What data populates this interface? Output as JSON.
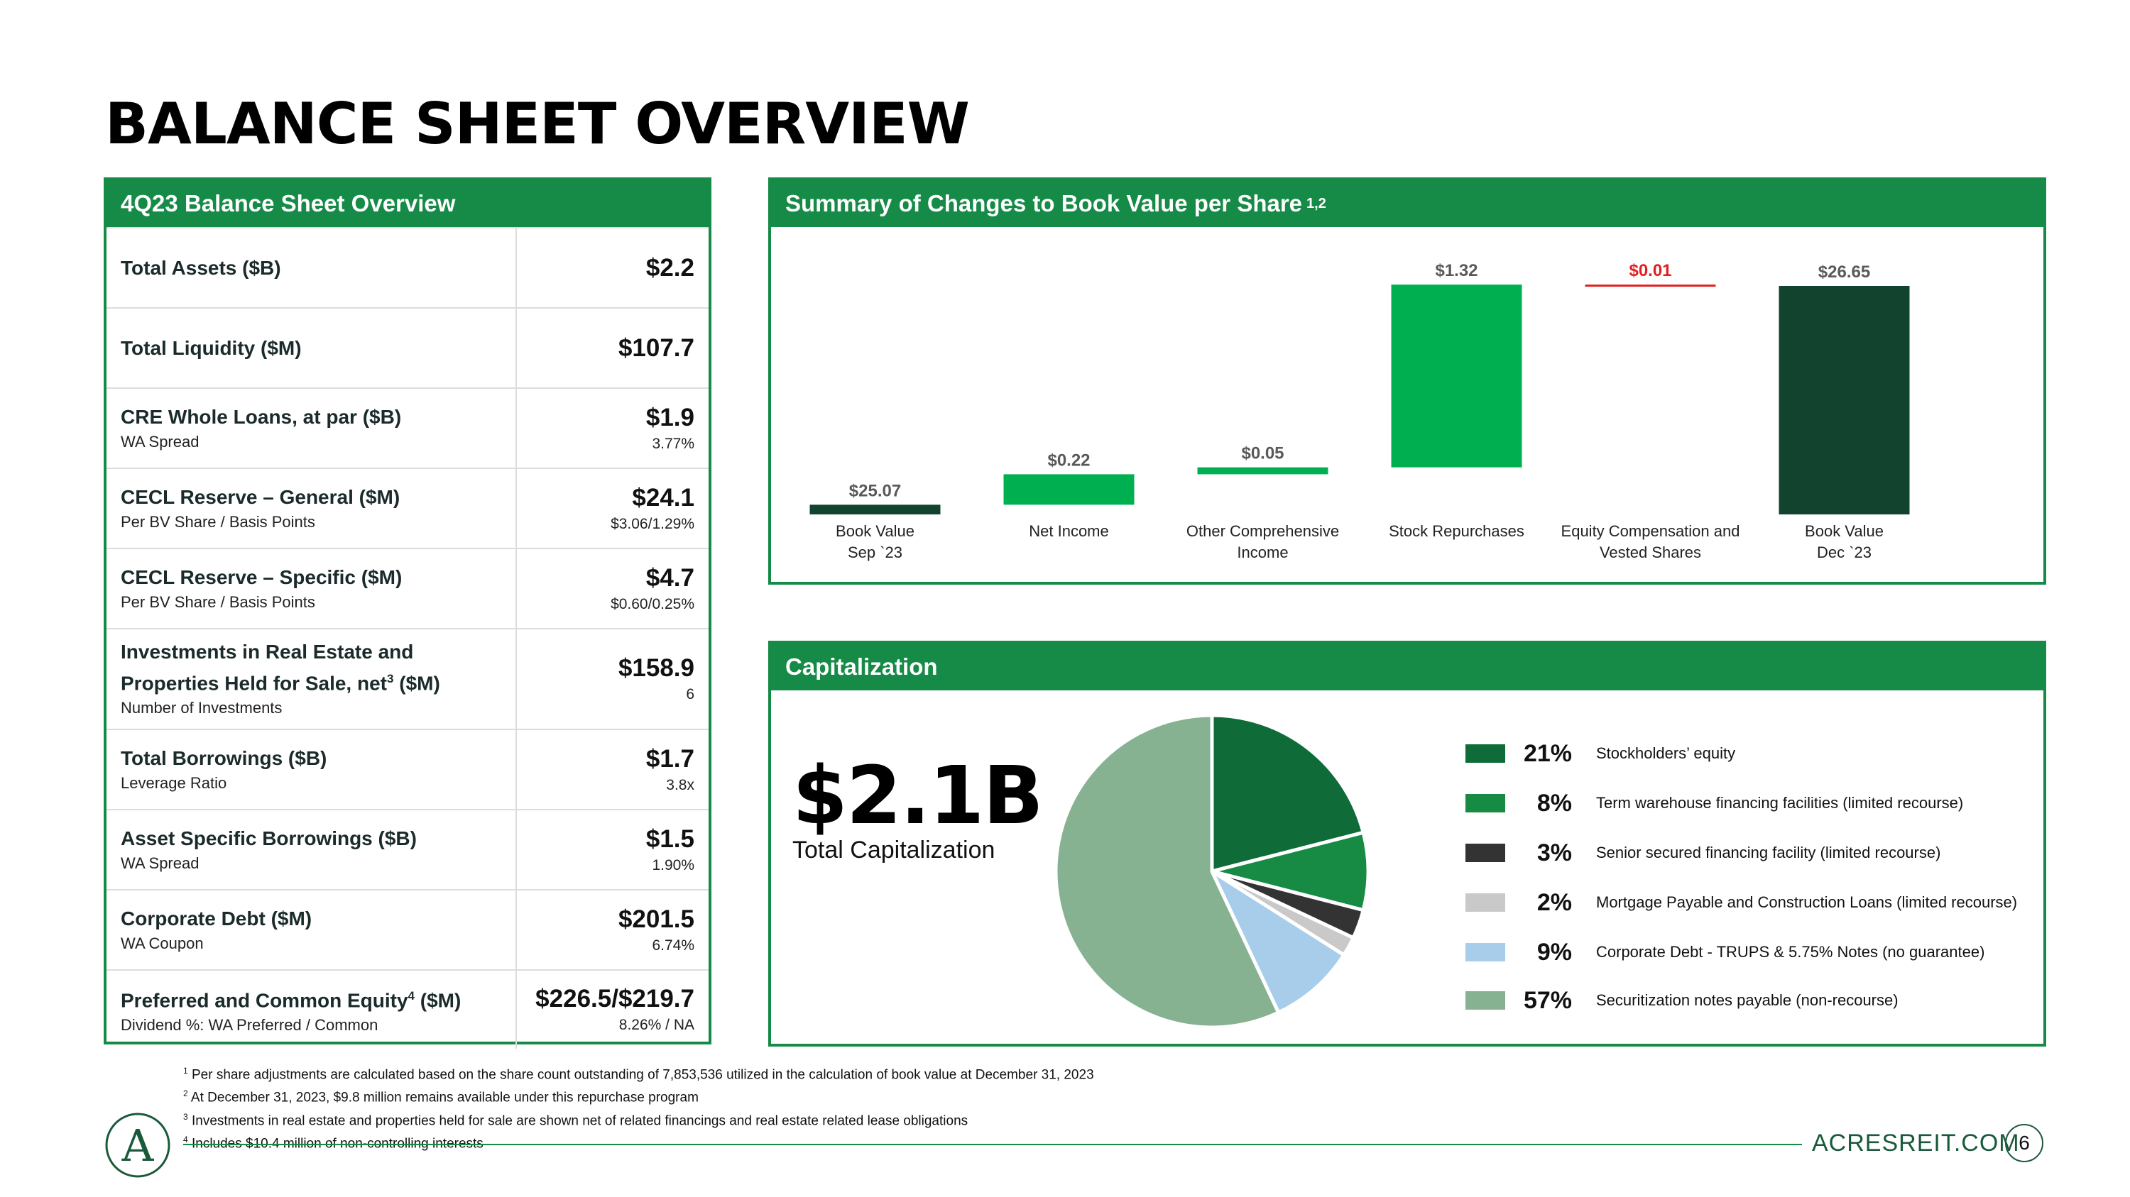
{
  "page": {
    "title": "BALANCE SHEET OVERVIEW"
  },
  "balance_sheet": {
    "header": "4Q23 Balance Sheet Overview",
    "rows": [
      {
        "label": "Total Assets ($B)",
        "value": "$2.2"
      },
      {
        "label": "Total Liquidity ($M)",
        "value": "$107.7"
      },
      {
        "label": "CRE Whole Loans, at par ($B)",
        "sublabel": "WA Spread",
        "value": "$1.9",
        "subvalue": "3.77%"
      },
      {
        "label": "CECL Reserve – General ($M)",
        "sublabel": "Per BV Share / Basis Points",
        "value": "$24.1",
        "subvalue": "$3.06/1.29%"
      },
      {
        "label": "CECL Reserve – Specific ($M)",
        "sublabel": "Per BV Share / Basis Points",
        "value": "$4.7",
        "subvalue": "$0.60/0.25%"
      },
      {
        "label_line1": "Investments in Real Estate and",
        "label_line2": "Properties Held for Sale, net",
        "label_sup": "3",
        "label_suffix": " ($M)",
        "sublabel": "Number of Investments",
        "value": "$158.9",
        "subvalue": "6"
      },
      {
        "label": "Total Borrowings ($B)",
        "sublabel": "Leverage Ratio",
        "value": "$1.7",
        "subvalue": "3.8x"
      },
      {
        "label": "Asset Specific Borrowings ($B)",
        "sublabel": "WA Spread",
        "value": "$1.5",
        "subvalue": "1.90%"
      },
      {
        "label": "Corporate Debt ($M)",
        "sublabel": "WA Coupon",
        "value": "$201.5",
        "subvalue": "6.74%"
      },
      {
        "label_prefix": "Preferred and Common Equity",
        "label_sup": "4",
        "label_suffix": " ($M)",
        "sublabel": "Dividend %: WA Preferred / Common",
        "value": "$226.5/$219.7",
        "subvalue": "8.26% / NA"
      }
    ]
  },
  "book_value": {
    "header": "Summary of Changes to Book Value per Share",
    "header_sup": "1,2"
  },
  "chart_data": [
    {
      "type": "bar",
      "subtype": "waterfall",
      "categories": [
        [
          "Book Value",
          "Sep `23"
        ],
        [
          "Net Income"
        ],
        [
          "Other Comprehensive",
          "Income"
        ],
        [
          "Stock Repurchases"
        ],
        [
          "Equity Compensation and",
          "Vested Shares"
        ],
        [
          "Book Value",
          "Dec `23"
        ]
      ],
      "values": [
        25.07,
        0.22,
        0.05,
        1.32,
        -0.01,
        26.65
      ],
      "data_labels": [
        "$25.07",
        "$0.22",
        "$0.05",
        "$1.32",
        "$0.01",
        "$26.65"
      ],
      "kinds": [
        "total",
        "increase",
        "increase",
        "increase",
        "decrease",
        "total"
      ],
      "colors": [
        "#12432e",
        "#00b050",
        "#00b050",
        "#00b050",
        "#e02020",
        "#12432e"
      ],
      "label_colors": [
        "#595959",
        "#595959",
        "#595959",
        "#595959",
        "#e02020",
        "#595959"
      ]
    },
    {
      "type": "pie",
      "title": "Capitalization",
      "total": "$2.1B",
      "total_label": "Total Capitalization",
      "slices": [
        {
          "label": "Stockholders’ equity",
          "value": 21,
          "pct": "21%",
          "color": "#0f6b38"
        },
        {
          "label": "Term warehouse financing facilities (limited recourse)",
          "value": 8,
          "pct": "8%",
          "color": "#178a44"
        },
        {
          "label": "Senior secured financing facility (limited recourse)",
          "value": 3,
          "pct": "3%",
          "color": "#333333"
        },
        {
          "label": "Mortgage Payable and Construction Loans (limited recourse)",
          "value": 2,
          "pct": "2%",
          "color": "#c9c9c9"
        },
        {
          "label": "Corporate Debt - TRUPS & 5.75% Notes (no guarantee)",
          "value": 9,
          "pct": "9%",
          "color": "#a8cdea"
        },
        {
          "label": "Securitization notes payable (non-recourse)",
          "value": 57,
          "pct": "57%",
          "color": "#86b291"
        }
      ]
    }
  ],
  "footnotes": [
    {
      "num": "1",
      "text": "Per share adjustments are calculated based on the share count outstanding of 7,853,536 utilized in the calculation of book value at December 31, 2023"
    },
    {
      "num": "2",
      "text": "At December 31, 2023, $9.8 million remains available under this repurchase program"
    },
    {
      "num": "3",
      "text": "Investments in real estate and properties held for sale are shown net of related financings and real estate related lease obligations"
    },
    {
      "num": "4",
      "text": "Includes $10.4 million of non-controlling interests"
    }
  ],
  "footer": {
    "url": "ACRESREIT.COM",
    "page": "6"
  },
  "logo": {
    "glyph": "A"
  },
  "colors": {
    "brand_green": "#168a47",
    "dark_green": "#12432e",
    "bright_green": "#00b050",
    "negative_red": "#e02020"
  }
}
